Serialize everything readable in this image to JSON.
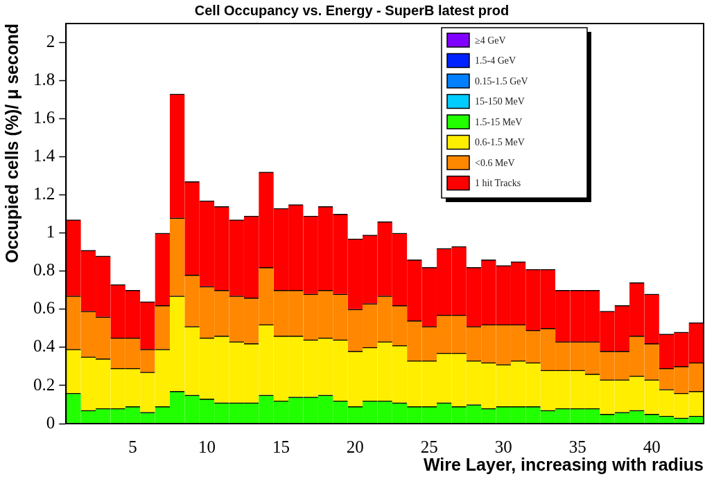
{
  "chart_data": {
    "type": "bar",
    "title": "Cell Occupancy vs. Energy - SuperB latest prod",
    "xlabel": "Wire Layer, increasing with radius",
    "ylabel": "Occupied cells (%)/ μ second",
    "x": [
      1,
      2,
      3,
      4,
      5,
      6,
      7,
      8,
      9,
      10,
      11,
      12,
      13,
      14,
      15,
      16,
      17,
      18,
      19,
      20,
      21,
      22,
      23,
      24,
      25,
      26,
      27,
      28,
      29,
      30,
      31,
      32,
      33,
      34,
      35,
      36,
      37,
      38,
      39,
      40,
      41,
      42,
      43
    ],
    "stacked": true,
    "series": [
      {
        "name": "≥4 GeV",
        "color": "#8000ff",
        "values": [
          0,
          0,
          0,
          0,
          0,
          0,
          0,
          0,
          0,
          0,
          0,
          0,
          0,
          0,
          0,
          0,
          0,
          0,
          0,
          0,
          0,
          0,
          0,
          0,
          0,
          0,
          0,
          0,
          0,
          0,
          0,
          0,
          0,
          0,
          0,
          0,
          0,
          0,
          0,
          0,
          0,
          0,
          0
        ]
      },
      {
        "name": "1.5-4 GeV",
        "color": "#0022ff",
        "values": [
          0,
          0,
          0,
          0,
          0,
          0,
          0,
          0,
          0,
          0,
          0,
          0,
          0,
          0,
          0,
          0,
          0,
          0,
          0,
          0,
          0,
          0,
          0,
          0,
          0,
          0,
          0,
          0,
          0,
          0,
          0,
          0,
          0,
          0,
          0,
          0,
          0,
          0,
          0,
          0,
          0,
          0,
          0
        ]
      },
      {
        "name": "0.15-1.5 GeV",
        "color": "#0080ff",
        "values": [
          0,
          0,
          0,
          0,
          0,
          0,
          0,
          0,
          0,
          0,
          0,
          0,
          0,
          0,
          0,
          0,
          0,
          0,
          0,
          0,
          0,
          0,
          0,
          0,
          0,
          0,
          0,
          0,
          0,
          0,
          0,
          0,
          0,
          0,
          0,
          0,
          0,
          0,
          0,
          0,
          0,
          0,
          0
        ]
      },
      {
        "name": "15-150 MeV",
        "color": "#00ccff",
        "values": [
          0,
          0,
          0,
          0,
          0,
          0,
          0,
          0,
          0,
          0,
          0,
          0,
          0,
          0,
          0,
          0,
          0,
          0,
          0,
          0,
          0,
          0,
          0,
          0,
          0,
          0,
          0,
          0,
          0,
          0,
          0,
          0,
          0,
          0,
          0,
          0,
          0,
          0,
          0,
          0,
          0,
          0,
          0
        ]
      },
      {
        "name": "1.5-15 MeV",
        "color": "#22ff00",
        "values": [
          0.16,
          0.07,
          0.08,
          0.08,
          0.09,
          0.06,
          0.09,
          0.17,
          0.15,
          0.13,
          0.11,
          0.11,
          0.11,
          0.15,
          0.12,
          0.14,
          0.14,
          0.15,
          0.12,
          0.09,
          0.12,
          0.12,
          0.11,
          0.09,
          0.09,
          0.11,
          0.09,
          0.1,
          0.08,
          0.09,
          0.09,
          0.09,
          0.07,
          0.08,
          0.08,
          0.08,
          0.05,
          0.06,
          0.07,
          0.05,
          0.04,
          0.03,
          0.04
        ]
      },
      {
        "name": "0.6-1.5 MeV",
        "color": "#ffee00",
        "values": [
          0.23,
          0.28,
          0.26,
          0.21,
          0.2,
          0.21,
          0.3,
          0.5,
          0.36,
          0.32,
          0.35,
          0.32,
          0.31,
          0.37,
          0.34,
          0.32,
          0.3,
          0.3,
          0.32,
          0.29,
          0.28,
          0.31,
          0.3,
          0.24,
          0.24,
          0.26,
          0.28,
          0.23,
          0.24,
          0.22,
          0.24,
          0.23,
          0.21,
          0.2,
          0.2,
          0.18,
          0.18,
          0.17,
          0.18,
          0.18,
          0.14,
          0.13,
          0.13
        ]
      },
      {
        "name": "<0.6 MeV",
        "color": "#ff8800",
        "values": [
          0.28,
          0.24,
          0.22,
          0.16,
          0.16,
          0.12,
          0.23,
          0.41,
          0.27,
          0.27,
          0.24,
          0.24,
          0.24,
          0.3,
          0.24,
          0.24,
          0.24,
          0.25,
          0.24,
          0.22,
          0.23,
          0.24,
          0.21,
          0.21,
          0.18,
          0.2,
          0.2,
          0.18,
          0.2,
          0.21,
          0.19,
          0.17,
          0.22,
          0.15,
          0.15,
          0.17,
          0.15,
          0.15,
          0.21,
          0.19,
          0.11,
          0.14,
          0.15
        ]
      },
      {
        "name": "1 hit Tracks",
        "color": "#ff0000",
        "values": [
          0.4,
          0.32,
          0.32,
          0.28,
          0.25,
          0.25,
          0.38,
          0.65,
          0.49,
          0.45,
          0.44,
          0.4,
          0.43,
          0.5,
          0.43,
          0.45,
          0.41,
          0.44,
          0.42,
          0.37,
          0.36,
          0.39,
          0.38,
          0.32,
          0.31,
          0.35,
          0.36,
          0.31,
          0.34,
          0.31,
          0.33,
          0.32,
          0.31,
          0.27,
          0.27,
          0.27,
          0.21,
          0.24,
          0.28,
          0.26,
          0.18,
          0.18,
          0.21
        ]
      }
    ],
    "xlim": [
      0.5,
      43.5
    ],
    "xticks": [
      5,
      10,
      15,
      20,
      25,
      30,
      35,
      40
    ],
    "ylim": [
      0,
      2.1
    ],
    "yticks": [
      0,
      0.2,
      0.4,
      0.6,
      0.8,
      1,
      1.2,
      1.4,
      1.6,
      1.8,
      2
    ],
    "grid": false,
    "legend": "top right"
  }
}
